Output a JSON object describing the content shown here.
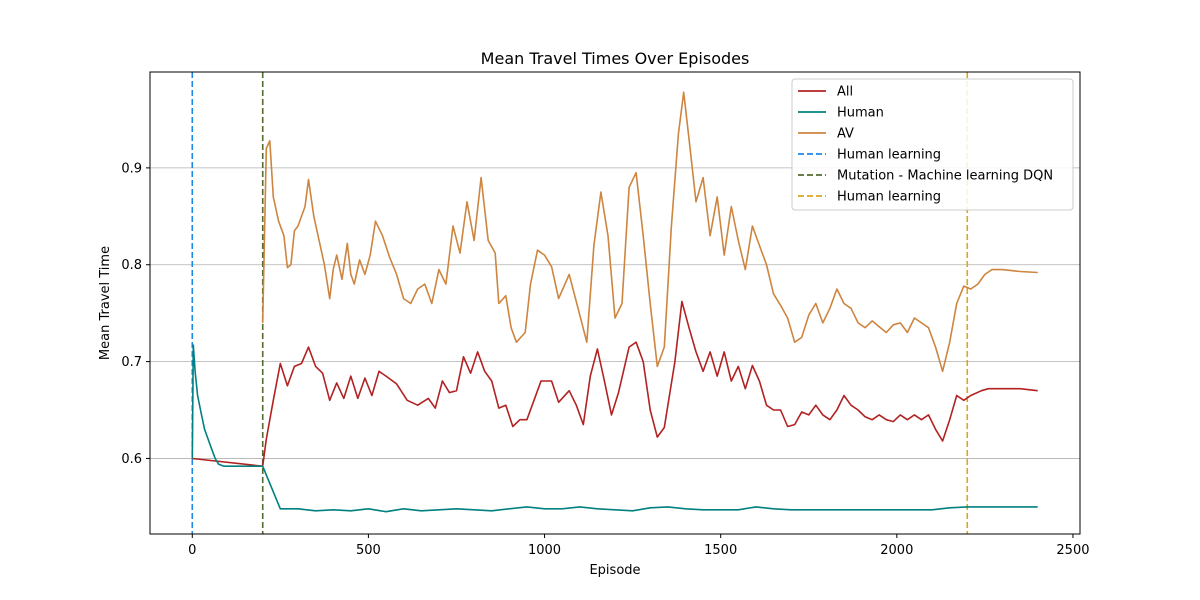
{
  "chart_data": {
    "type": "line",
    "title": "Mean Travel Times Over Episodes",
    "xlabel": "Episode",
    "ylabel": "Mean Travel Time",
    "xlim": [
      -120,
      2520
    ],
    "ylim": [
      0.522,
      0.999
    ],
    "xticks": [
      0,
      500,
      1000,
      1500,
      2000,
      2500
    ],
    "yticks": [
      0.6,
      0.7,
      0.8,
      0.9
    ],
    "y_grid": true,
    "legend_position": "top-right",
    "series": [
      {
        "name": "All",
        "color": "#b22222",
        "points": [
          [
            0,
            0.6
          ],
          [
            200,
            0.592
          ],
          [
            210,
            0.62
          ],
          [
            230,
            0.66
          ],
          [
            250,
            0.698
          ],
          [
            270,
            0.675
          ],
          [
            290,
            0.695
          ],
          [
            310,
            0.698
          ],
          [
            330,
            0.715
          ],
          [
            350,
            0.695
          ],
          [
            370,
            0.688
          ],
          [
            390,
            0.66
          ],
          [
            410,
            0.678
          ],
          [
            430,
            0.662
          ],
          [
            450,
            0.685
          ],
          [
            470,
            0.662
          ],
          [
            490,
            0.683
          ],
          [
            510,
            0.665
          ],
          [
            530,
            0.69
          ],
          [
            550,
            0.685
          ],
          [
            580,
            0.677
          ],
          [
            610,
            0.66
          ],
          [
            640,
            0.655
          ],
          [
            670,
            0.662
          ],
          [
            690,
            0.652
          ],
          [
            710,
            0.68
          ],
          [
            730,
            0.668
          ],
          [
            750,
            0.67
          ],
          [
            770,
            0.705
          ],
          [
            790,
            0.688
          ],
          [
            810,
            0.71
          ],
          [
            830,
            0.69
          ],
          [
            850,
            0.68
          ],
          [
            870,
            0.652
          ],
          [
            890,
            0.655
          ],
          [
            910,
            0.633
          ],
          [
            930,
            0.64
          ],
          [
            950,
            0.64
          ],
          [
            970,
            0.66
          ],
          [
            990,
            0.68
          ],
          [
            1020,
            0.68
          ],
          [
            1040,
            0.658
          ],
          [
            1070,
            0.67
          ],
          [
            1090,
            0.655
          ],
          [
            1110,
            0.635
          ],
          [
            1130,
            0.685
          ],
          [
            1150,
            0.713
          ],
          [
            1170,
            0.68
          ],
          [
            1190,
            0.645
          ],
          [
            1210,
            0.668
          ],
          [
            1240,
            0.715
          ],
          [
            1260,
            0.72
          ],
          [
            1280,
            0.7
          ],
          [
            1300,
            0.65
          ],
          [
            1320,
            0.622
          ],
          [
            1340,
            0.632
          ],
          [
            1370,
            0.7
          ],
          [
            1390,
            0.762
          ],
          [
            1410,
            0.735
          ],
          [
            1430,
            0.71
          ],
          [
            1450,
            0.69
          ],
          [
            1470,
            0.71
          ],
          [
            1490,
            0.685
          ],
          [
            1510,
            0.71
          ],
          [
            1530,
            0.68
          ],
          [
            1550,
            0.695
          ],
          [
            1570,
            0.672
          ],
          [
            1590,
            0.696
          ],
          [
            1610,
            0.68
          ],
          [
            1630,
            0.655
          ],
          [
            1650,
            0.65
          ],
          [
            1670,
            0.65
          ],
          [
            1690,
            0.633
          ],
          [
            1710,
            0.635
          ],
          [
            1730,
            0.648
          ],
          [
            1750,
            0.645
          ],
          [
            1770,
            0.655
          ],
          [
            1790,
            0.645
          ],
          [
            1810,
            0.64
          ],
          [
            1830,
            0.65
          ],
          [
            1850,
            0.665
          ],
          [
            1870,
            0.655
          ],
          [
            1890,
            0.65
          ],
          [
            1910,
            0.643
          ],
          [
            1930,
            0.64
          ],
          [
            1950,
            0.645
          ],
          [
            1970,
            0.64
          ],
          [
            1990,
            0.638
          ],
          [
            2010,
            0.645
          ],
          [
            2030,
            0.64
          ],
          [
            2050,
            0.645
          ],
          [
            2070,
            0.64
          ],
          [
            2090,
            0.645
          ],
          [
            2110,
            0.63
          ],
          [
            2130,
            0.618
          ],
          [
            2150,
            0.64
          ],
          [
            2170,
            0.665
          ],
          [
            2190,
            0.66
          ],
          [
            2210,
            0.665
          ],
          [
            2240,
            0.67
          ],
          [
            2260,
            0.672
          ],
          [
            2300,
            0.672
          ],
          [
            2350,
            0.672
          ],
          [
            2400,
            0.67
          ]
        ]
      },
      {
        "name": "Human",
        "color": "#008080",
        "points": [
          [
            0,
            0.6
          ],
          [
            3,
            0.717
          ],
          [
            8,
            0.69
          ],
          [
            15,
            0.665
          ],
          [
            25,
            0.647
          ],
          [
            35,
            0.63
          ],
          [
            45,
            0.62
          ],
          [
            55,
            0.61
          ],
          [
            65,
            0.6
          ],
          [
            75,
            0.594
          ],
          [
            90,
            0.592
          ],
          [
            200,
            0.592
          ],
          [
            250,
            0.548
          ],
          [
            300,
            0.548
          ],
          [
            350,
            0.546
          ],
          [
            400,
            0.547
          ],
          [
            450,
            0.546
          ],
          [
            500,
            0.548
          ],
          [
            550,
            0.545
          ],
          [
            600,
            0.548
          ],
          [
            650,
            0.546
          ],
          [
            700,
            0.547
          ],
          [
            750,
            0.548
          ],
          [
            800,
            0.547
          ],
          [
            850,
            0.546
          ],
          [
            900,
            0.548
          ],
          [
            950,
            0.55
          ],
          [
            1000,
            0.548
          ],
          [
            1050,
            0.548
          ],
          [
            1100,
            0.55
          ],
          [
            1150,
            0.548
          ],
          [
            1200,
            0.547
          ],
          [
            1250,
            0.546
          ],
          [
            1300,
            0.549
          ],
          [
            1350,
            0.55
          ],
          [
            1400,
            0.548
          ],
          [
            1450,
            0.547
          ],
          [
            1500,
            0.547
          ],
          [
            1550,
            0.547
          ],
          [
            1600,
            0.55
          ],
          [
            1650,
            0.548
          ],
          [
            1700,
            0.547
          ],
          [
            1750,
            0.547
          ],
          [
            1800,
            0.547
          ],
          [
            1850,
            0.547
          ],
          [
            1900,
            0.547
          ],
          [
            1950,
            0.547
          ],
          [
            2000,
            0.547
          ],
          [
            2050,
            0.547
          ],
          [
            2100,
            0.547
          ],
          [
            2150,
            0.549
          ],
          [
            2200,
            0.55
          ],
          [
            2250,
            0.55
          ],
          [
            2300,
            0.55
          ],
          [
            2350,
            0.55
          ],
          [
            2400,
            0.55
          ]
        ]
      },
      {
        "name": "AV",
        "color": "#cd853f",
        "points": [
          [
            200,
            0.74
          ],
          [
            210,
            0.92
          ],
          [
            220,
            0.928
          ],
          [
            230,
            0.87
          ],
          [
            245,
            0.845
          ],
          [
            260,
            0.83
          ],
          [
            270,
            0.797
          ],
          [
            280,
            0.8
          ],
          [
            290,
            0.835
          ],
          [
            300,
            0.84
          ],
          [
            320,
            0.86
          ],
          [
            330,
            0.888
          ],
          [
            345,
            0.85
          ],
          [
            360,
            0.825
          ],
          [
            375,
            0.8
          ],
          [
            390,
            0.765
          ],
          [
            400,
            0.795
          ],
          [
            410,
            0.81
          ],
          [
            425,
            0.785
          ],
          [
            440,
            0.822
          ],
          [
            450,
            0.79
          ],
          [
            460,
            0.78
          ],
          [
            475,
            0.805
          ],
          [
            490,
            0.79
          ],
          [
            505,
            0.81
          ],
          [
            520,
            0.845
          ],
          [
            540,
            0.83
          ],
          [
            560,
            0.808
          ],
          [
            580,
            0.79
          ],
          [
            600,
            0.765
          ],
          [
            620,
            0.76
          ],
          [
            640,
            0.775
          ],
          [
            660,
            0.78
          ],
          [
            680,
            0.76
          ],
          [
            700,
            0.795
          ],
          [
            720,
            0.78
          ],
          [
            740,
            0.84
          ],
          [
            760,
            0.812
          ],
          [
            780,
            0.865
          ],
          [
            800,
            0.825
          ],
          [
            820,
            0.89
          ],
          [
            840,
            0.825
          ],
          [
            860,
            0.812
          ],
          [
            870,
            0.76
          ],
          [
            890,
            0.768
          ],
          [
            905,
            0.735
          ],
          [
            920,
            0.72
          ],
          [
            945,
            0.73
          ],
          [
            960,
            0.78
          ],
          [
            980,
            0.815
          ],
          [
            1000,
            0.81
          ],
          [
            1020,
            0.798
          ],
          [
            1040,
            0.765
          ],
          [
            1070,
            0.79
          ],
          [
            1100,
            0.748
          ],
          [
            1120,
            0.72
          ],
          [
            1140,
            0.82
          ],
          [
            1160,
            0.875
          ],
          [
            1180,
            0.83
          ],
          [
            1200,
            0.745
          ],
          [
            1220,
            0.76
          ],
          [
            1240,
            0.88
          ],
          [
            1260,
            0.895
          ],
          [
            1280,
            0.83
          ],
          [
            1300,
            0.76
          ],
          [
            1320,
            0.695
          ],
          [
            1340,
            0.715
          ],
          [
            1360,
            0.84
          ],
          [
            1380,
            0.935
          ],
          [
            1395,
            0.978
          ],
          [
            1410,
            0.93
          ],
          [
            1430,
            0.865
          ],
          [
            1450,
            0.89
          ],
          [
            1470,
            0.83
          ],
          [
            1490,
            0.87
          ],
          [
            1510,
            0.81
          ],
          [
            1530,
            0.86
          ],
          [
            1550,
            0.825
          ],
          [
            1570,
            0.795
          ],
          [
            1590,
            0.84
          ],
          [
            1610,
            0.82
          ],
          [
            1630,
            0.8
          ],
          [
            1650,
            0.77
          ],
          [
            1670,
            0.758
          ],
          [
            1690,
            0.745
          ],
          [
            1710,
            0.72
          ],
          [
            1730,
            0.725
          ],
          [
            1750,
            0.748
          ],
          [
            1770,
            0.76
          ],
          [
            1790,
            0.74
          ],
          [
            1810,
            0.755
          ],
          [
            1830,
            0.775
          ],
          [
            1850,
            0.76
          ],
          [
            1870,
            0.755
          ],
          [
            1890,
            0.74
          ],
          [
            1910,
            0.735
          ],
          [
            1930,
            0.742
          ],
          [
            1950,
            0.736
          ],
          [
            1970,
            0.73
          ],
          [
            1990,
            0.738
          ],
          [
            2010,
            0.74
          ],
          [
            2030,
            0.73
          ],
          [
            2050,
            0.745
          ],
          [
            2070,
            0.74
          ],
          [
            2090,
            0.735
          ],
          [
            2110,
            0.715
          ],
          [
            2130,
            0.69
          ],
          [
            2150,
            0.72
          ],
          [
            2170,
            0.76
          ],
          [
            2190,
            0.778
          ],
          [
            2210,
            0.775
          ],
          [
            2230,
            0.78
          ],
          [
            2250,
            0.79
          ],
          [
            2270,
            0.795
          ],
          [
            2300,
            0.795
          ],
          [
            2350,
            0.793
          ],
          [
            2400,
            0.792
          ]
        ]
      }
    ],
    "vlines": [
      {
        "name": "Human learning",
        "x": 0,
        "color": "#1e88e5",
        "style": "dashed"
      },
      {
        "name": "Mutation - Machine learning DQN",
        "x": 200,
        "color": "#556b2f",
        "style": "dashed"
      },
      {
        "name": "Human learning",
        "x": 2200,
        "color": "#daa520",
        "style": "dashed"
      }
    ]
  }
}
